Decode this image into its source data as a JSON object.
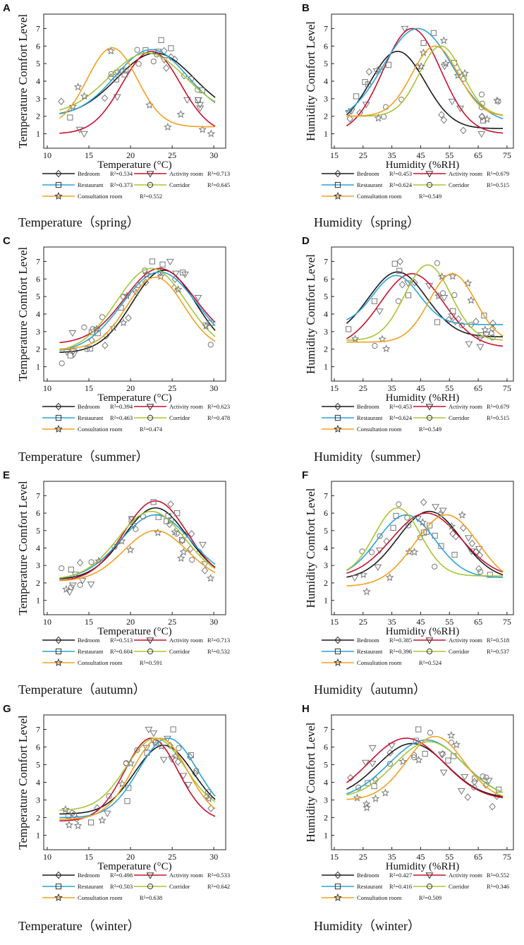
{
  "colors": {
    "Bedroom": "#1a1a1a",
    "Activity room": "#c8102e",
    "Restaurant": "#2ba3d6",
    "Corridor": "#a7c535",
    "Consultation room": "#f0a020"
  },
  "markers": {
    "Bedroom": "diamond",
    "Activity room": "triangle-down",
    "Restaurant": "square",
    "Corridor": "circle",
    "Consultation room": "star"
  },
  "chart_data": [
    {
      "type": "scatter",
      "letter": "A",
      "caption": "Temperature（spring）",
      "xlabel": "Temperature (°C)",
      "ylabel": "Temperature Comfort Level",
      "xlim": [
        10,
        31
      ],
      "ylim": [
        0.5,
        7.5
      ],
      "xticks": [
        10,
        15,
        20,
        25,
        30
      ],
      "yticks": [
        1,
        2,
        3,
        4,
        5,
        6,
        7
      ],
      "series": [
        {
          "name": "Bedroom",
          "r2": "R²=0.534",
          "peak": 5.6,
          "center": 23.0,
          "width": 4.6,
          "base": 2.0
        },
        {
          "name": "Activity room",
          "r2": "R²=0.713",
          "peak": 5.7,
          "center": 22.5,
          "width": 3.5,
          "base": 1.0
        },
        {
          "name": "Restaurant",
          "r2": "R²=0.373",
          "peak": 5.8,
          "center": 22.5,
          "width": 4.3,
          "base": 2.0
        },
        {
          "name": "Corridor",
          "r2": "R²=0.645",
          "peak": 5.6,
          "center": 22.0,
          "width": 4.6,
          "base": 2.1
        },
        {
          "name": "Consultation room",
          "r2": "R²=0.552",
          "peak": 5.9,
          "center": 17.8,
          "width": 3.0,
          "base": 1.4
        }
      ]
    },
    {
      "type": "scatter",
      "letter": "B",
      "caption": "Humidity（spring）",
      "xlabel": "Humidity (%RH)",
      "ylabel": "Humidity Comfort Level",
      "xlim": [
        15,
        76
      ],
      "ylim": [
        0.5,
        7.5
      ],
      "xticks": [
        15,
        25,
        35,
        45,
        55,
        65,
        75
      ],
      "yticks": [
        1,
        2,
        3,
        4,
        5,
        6,
        7
      ],
      "series": [
        {
          "name": "Bedroom",
          "r2": "R²=0.453",
          "peak": 5.7,
          "center": 37.0,
          "width": 9.5,
          "base": 1.3
        },
        {
          "name": "Activity room",
          "r2": "R²=0.679",
          "peak": 7.0,
          "center": 42.0,
          "width": 10.0,
          "base": 1.0
        },
        {
          "name": "Restaurant",
          "r2": "R²=0.624",
          "peak": 7.0,
          "center": 44.0,
          "width": 12.0,
          "base": 1.6
        },
        {
          "name": "Corridor",
          "r2": "R²=0.515",
          "peak": 6.0,
          "center": 52.0,
          "width": 7.5,
          "base": 2.0
        },
        {
          "name": "Consultation room",
          "r2": "R²=0.549",
          "peak": 6.0,
          "center": 50.0,
          "width": 8.0,
          "base": 2.0
        }
      ]
    },
    {
      "type": "scatter",
      "letter": "C",
      "caption": "Temperature（summer）",
      "xlabel": "Temperature (°C)",
      "ylabel": "Temperature Comfort Level",
      "xlim": [
        10,
        31
      ],
      "ylim": [
        0.5,
        7.5
      ],
      "xticks": [
        10,
        15,
        20,
        25,
        30
      ],
      "yticks": [
        1,
        2,
        3,
        4,
        5,
        6,
        7
      ],
      "series": [
        {
          "name": "Bedroom",
          "r2": "R²=0.394",
          "peak": 6.5,
          "center": 24.0,
          "width": 3.8,
          "base": 1.8
        },
        {
          "name": "Activity room",
          "r2": "R²=0.623",
          "peak": 6.6,
          "center": 23.5,
          "width": 4.2,
          "base": 2.3
        },
        {
          "name": "Restaurant",
          "r2": "R²=0.463",
          "peak": 6.4,
          "center": 23.5,
          "width": 4.5,
          "base": 1.8
        },
        {
          "name": "Corridor",
          "r2": "R²=0.478",
          "peak": 6.6,
          "center": 22.5,
          "width": 4.2,
          "base": 1.8
        },
        {
          "name": "Consultation room",
          "r2": "R²=0.474",
          "peak": 6.1,
          "center": 23.0,
          "width": 3.4,
          "base": 2.0
        }
      ]
    },
    {
      "type": "scatter",
      "letter": "D",
      "caption": "Humidity（summer）",
      "xlabel": "Humidity (%RH)",
      "ylabel": "Humidity Comfort Level",
      "xlim": [
        15,
        76
      ],
      "ylim": [
        0.5,
        7.5
      ],
      "xticks": [
        15,
        25,
        35,
        45,
        55,
        65,
        75
      ],
      "yticks": [
        1,
        2,
        3,
        4,
        5,
        6,
        7
      ],
      "series": [
        {
          "name": "Bedroom",
          "r2": "R²=0.453",
          "peak": 6.4,
          "center": 37.0,
          "width": 10.0,
          "base": 2.7
        },
        {
          "name": "Activity room",
          "r2": "R²=0.679",
          "peak": 6.3,
          "center": 42.0,
          "width": 11.0,
          "base": 2.1
        },
        {
          "name": "Restaurant",
          "r2": "R²=0.624",
          "peak": 6.2,
          "center": 36.5,
          "width": 8.0,
          "base": 3.4
        },
        {
          "name": "Corridor",
          "r2": "R²=0.515",
          "peak": 6.8,
          "center": 47.5,
          "width": 8.0,
          "base": 2.5
        },
        {
          "name": "Consultation room",
          "r2": "R²=0.549",
          "peak": 6.3,
          "center": 56.0,
          "width": 8.0,
          "base": 2.4
        }
      ]
    },
    {
      "type": "scatter",
      "letter": "E",
      "caption": "Temperature（autumn）",
      "xlabel": "Temperature (°C)",
      "ylabel": "Temperature Comfort Level",
      "xlim": [
        10,
        31
      ],
      "ylim": [
        0.5,
        7.5
      ],
      "xticks": [
        10,
        15,
        20,
        25,
        30
      ],
      "yticks": [
        1,
        2,
        3,
        4,
        5,
        6,
        7
      ],
      "series": [
        {
          "name": "Bedroom",
          "r2": "R²=0.513",
          "peak": 6.3,
          "center": 23.0,
          "width": 3.8,
          "base": 2.2
        },
        {
          "name": "Activity room",
          "r2": "R²=0.713",
          "peak": 6.7,
          "center": 23.0,
          "width": 3.8,
          "base": 2.1
        },
        {
          "name": "Restaurant",
          "r2": "R²=0.604",
          "peak": 5.9,
          "center": 23.0,
          "width": 4.2,
          "base": 2.2
        },
        {
          "name": "Corridor",
          "r2": "R²=0.532",
          "peak": 6.1,
          "center": 22.5,
          "width": 4.0,
          "base": 2.2
        },
        {
          "name": "Consultation room",
          "r2": "R²=0.591",
          "peak": 5.0,
          "center": 23.0,
          "width": 3.8,
          "base": 2.1
        }
      ]
    },
    {
      "type": "scatter",
      "letter": "F",
      "caption": "Humidity（autumn）",
      "xlabel": "Humidity (%RH)",
      "ylabel": "Humidity Comfort Level",
      "xlim": [
        15,
        76
      ],
      "ylim": [
        0.5,
        7.5
      ],
      "xticks": [
        15,
        25,
        35,
        45,
        55,
        65,
        75
      ],
      "yticks": [
        1,
        2,
        3,
        4,
        5,
        6,
        7
      ],
      "series": [
        {
          "name": "Bedroom",
          "r2": "R²=0.385",
          "peak": 6.1,
          "center": 48.0,
          "width": 11.0,
          "base": 2.2
        },
        {
          "name": "Activity room",
          "r2": "R²=0.518",
          "peak": 6.0,
          "center": 47.0,
          "width": 12.0,
          "base": 2.3
        },
        {
          "name": "Restaurant",
          "r2": "R²=0.396",
          "peak": 5.9,
          "center": 40.0,
          "width": 10.0,
          "base": 2.3
        },
        {
          "name": "Corridor",
          "r2": "R²=0.537",
          "peak": 6.3,
          "center": 37.0,
          "width": 8.0,
          "base": 2.4
        },
        {
          "name": "Consultation room",
          "r2": "R²=0.524",
          "peak": 5.9,
          "center": 54.0,
          "width": 11.0,
          "base": 1.8
        }
      ]
    },
    {
      "type": "scatter",
      "letter": "G",
      "caption": "Temperature（winter）",
      "xlabel": "Temperature (°C)",
      "ylabel": "Temperature Comfort Level",
      "xlim": [
        10,
        31
      ],
      "ylim": [
        0.5,
        7.5
      ],
      "xticks": [
        10,
        15,
        20,
        25,
        30
      ],
      "yticks": [
        1,
        2,
        3,
        4,
        5,
        6,
        7
      ],
      "series": [
        {
          "name": "Bedroom",
          "r2": "R²=0.498",
          "peak": 6.1,
          "center": 24.0,
          "width": 3.5,
          "base": 2.2
        },
        {
          "name": "Activity room",
          "r2": "R²=0.533",
          "peak": 6.5,
          "center": 22.5,
          "width": 3.2,
          "base": 1.8
        },
        {
          "name": "Restaurant",
          "r2": "R²=0.503",
          "peak": 6.5,
          "center": 24.5,
          "width": 3.5,
          "base": 2.0
        },
        {
          "name": "Corridor",
          "r2": "R²=0.642",
          "peak": 6.5,
          "center": 23.0,
          "width": 3.5,
          "base": 2.4
        },
        {
          "name": "Consultation room",
          "r2": "R²=0.638",
          "peak": 6.5,
          "center": 23.5,
          "width": 3.3,
          "base": 1.9
        }
      ]
    },
    {
      "type": "scatter",
      "letter": "H",
      "caption": "Humidity（winter）",
      "xlabel": "Humidity (%RH)",
      "ylabel": "Humidity Comfort Level",
      "xlim": [
        15,
        76
      ],
      "ylim": [
        0.5,
        7.5
      ],
      "xticks": [
        15,
        25,
        35,
        45,
        55,
        65,
        75
      ],
      "yticks": [
        1,
        2,
        3,
        4,
        5,
        6,
        7
      ],
      "series": [
        {
          "name": "Bedroom",
          "r2": "R²=0.427",
          "peak": 6.2,
          "center": 42.0,
          "width": 12.0,
          "base": 3.1
        },
        {
          "name": "Activity room",
          "r2": "R²=0.552",
          "peak": 6.5,
          "center": 40.0,
          "width": 13.0,
          "base": 3.0
        },
        {
          "name": "Restaurant",
          "r2": "R²=0.416",
          "peak": 6.4,
          "center": 47.0,
          "width": 13.0,
          "base": 3.0
        },
        {
          "name": "Corridor",
          "r2": "R²=0.346",
          "peak": 6.3,
          "center": 48.0,
          "width": 12.0,
          "base": 3.1
        },
        {
          "name": "Consultation room",
          "r2": "R²=0.509",
          "peak": 6.6,
          "center": 50.0,
          "width": 10.0,
          "base": 3.0
        }
      ]
    }
  ]
}
